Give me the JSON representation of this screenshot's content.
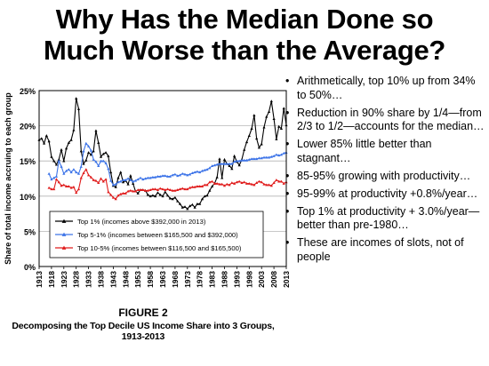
{
  "slide": {
    "title_line1": "Why Has the Median Done so",
    "title_line2": "Much Worse than the Average?"
  },
  "bullets": [
    "Arithmetically, top 10% up from 34% to 50%…",
    "Reduction in 90% share by 1/4—from 2/3 to 1/2—accounts for the median…",
    "Lower 85% little better than stagnant…",
    "85-95% growing with productivity…",
    "95-99% at productivity +0.8%/year…",
    "Top 1% at productivity + 3.0%/year—better than pre-1980…",
    "These are incomes of slots, not of people"
  ],
  "figure": {
    "number": "FIGURE 2",
    "caption": "Decomposing the Top Decile US Income Share into 3 Groups, 1913-2013"
  },
  "chart_data": {
    "type": "line",
    "title": "",
    "xlabel": "",
    "ylabel": "Share of total income accruing to each group",
    "xlim": [
      1913,
      2013
    ],
    "ylim": [
      0,
      25
    ],
    "x_ticks": [
      "1913",
      "1918",
      "1923",
      "1928",
      "1933",
      "1938",
      "1943",
      "1948",
      "1953",
      "1958",
      "1963",
      "1968",
      "1973",
      "1978",
      "1983",
      "1988",
      "1993",
      "1998",
      "2003",
      "2008",
      "2013"
    ],
    "y_ticks": [
      "0%",
      "5%",
      "10%",
      "15%",
      "20%",
      "25%"
    ],
    "y_tick_values": [
      0,
      5,
      10,
      15,
      20,
      25
    ],
    "grid": true,
    "legend_position": "lower-left",
    "series": [
      {
        "name": "Top 1% (incomes above $392,000 in 2013)",
        "color": "#000000",
        "marker": "triangle",
        "x": [
          1913,
          1914,
          1915,
          1916,
          1917,
          1918,
          1919,
          1920,
          1921,
          1922,
          1923,
          1924,
          1925,
          1926,
          1927,
          1928,
          1929,
          1930,
          1931,
          1932,
          1933,
          1934,
          1935,
          1936,
          1937,
          1938,
          1939,
          1940,
          1941,
          1942,
          1943,
          1944,
          1945,
          1946,
          1947,
          1948,
          1949,
          1950,
          1951,
          1952,
          1953,
          1954,
          1955,
          1956,
          1957,
          1958,
          1959,
          1960,
          1961,
          1962,
          1963,
          1964,
          1965,
          1966,
          1967,
          1968,
          1969,
          1970,
          1971,
          1972,
          1973,
          1974,
          1975,
          1976,
          1977,
          1978,
          1979,
          1980,
          1981,
          1982,
          1983,
          1984,
          1985,
          1986,
          1987,
          1988,
          1989,
          1990,
          1991,
          1992,
          1993,
          1994,
          1995,
          1996,
          1997,
          1998,
          1999,
          2000,
          2001,
          2002,
          2003,
          2004,
          2005,
          2006,
          2007,
          2008,
          2009,
          2010,
          2011,
          2012,
          2013
        ],
        "values": [
          18.0,
          18.2,
          17.5,
          18.6,
          17.8,
          15.6,
          15.0,
          14.5,
          15.2,
          16.6,
          15.0,
          16.8,
          17.6,
          18.0,
          19.4,
          23.9,
          22.4,
          16.4,
          14.6,
          15.1,
          16.2,
          15.9,
          16.4,
          19.3,
          17.6,
          15.6,
          16.0,
          16.2,
          15.7,
          13.4,
          11.5,
          11.3,
          12.6,
          13.4,
          12.0,
          12.2,
          11.7,
          12.9,
          11.8,
          10.7,
          10.4,
          10.9,
          10.9,
          10.8,
          10.2,
          10.0,
          10.1,
          10.0,
          10.5,
          10.2,
          10.0,
          10.6,
          10.1,
          9.7,
          9.6,
          9.8,
          9.3,
          8.9,
          8.4,
          8.5,
          8.2,
          8.6,
          8.8,
          8.4,
          8.9,
          8.9,
          9.6,
          10.0,
          10.1,
          10.8,
          11.4,
          11.8,
          12.7,
          15.3,
          12.6,
          15.2,
          14.6,
          14.3,
          13.9,
          15.7,
          14.9,
          14.4,
          15.2,
          16.6,
          17.7,
          18.6,
          19.6,
          21.5,
          18.2,
          16.9,
          17.4,
          19.8,
          21.3,
          22.0,
          23.5,
          21.0,
          18.1,
          19.9,
          19.6,
          22.5,
          20.1
        ]
      },
      {
        "name": "Top 5-1% (incomes between $165,500 and $392,000)",
        "color": "#3d74e8",
        "marker": "triangle",
        "x": [
          1917,
          1918,
          1919,
          1920,
          1921,
          1922,
          1923,
          1924,
          1925,
          1926,
          1927,
          1928,
          1929,
          1930,
          1931,
          1932,
          1933,
          1934,
          1935,
          1936,
          1937,
          1938,
          1939,
          1940,
          1941,
          1942,
          1943,
          1944,
          1945,
          1946,
          1947,
          1948,
          1949,
          1950,
          1951,
          1952,
          1953,
          1954,
          1955,
          1956,
          1957,
          1958,
          1959,
          1960,
          1961,
          1962,
          1963,
          1964,
          1965,
          1966,
          1967,
          1968,
          1969,
          1970,
          1971,
          1972,
          1973,
          1974,
          1975,
          1976,
          1977,
          1978,
          1979,
          1980,
          1981,
          1982,
          1983,
          1984,
          1985,
          1986,
          1987,
          1988,
          1989,
          1990,
          1991,
          1992,
          1993,
          1994,
          1995,
          1996,
          1997,
          1998,
          1999,
          2000,
          2001,
          2002,
          2003,
          2004,
          2005,
          2006,
          2007,
          2008,
          2009,
          2010,
          2011,
          2012,
          2013
        ],
        "values": [
          13.2,
          12.4,
          12.6,
          12.8,
          15.0,
          14.2,
          13.2,
          13.6,
          13.8,
          13.4,
          13.8,
          13.4,
          13.2,
          14.2,
          16.4,
          17.5,
          17.1,
          16.5,
          15.2,
          14.9,
          14.3,
          15.0,
          15.0,
          14.7,
          13.9,
          12.2,
          11.6,
          11.7,
          12.0,
          12.1,
          12.3,
          12.3,
          12.5,
          12.3,
          12.1,
          12.2,
          12.4,
          12.6,
          12.4,
          12.5,
          12.6,
          12.6,
          12.7,
          12.7,
          12.8,
          12.8,
          12.9,
          12.9,
          12.8,
          12.8,
          13.0,
          13.1,
          12.9,
          13.0,
          13.2,
          13.1,
          13.0,
          13.1,
          13.3,
          13.4,
          13.5,
          13.4,
          13.6,
          13.7,
          13.8,
          14.0,
          14.3,
          14.4,
          14.5,
          14.6,
          14.6,
          14.6,
          14.6,
          14.6,
          14.6,
          14.9,
          15.0,
          15.0,
          15.1,
          15.1,
          15.1,
          15.2,
          15.3,
          15.3,
          15.3,
          15.4,
          15.4,
          15.5,
          15.5,
          15.5,
          15.6,
          15.7,
          15.9,
          15.8,
          15.9,
          16.1,
          16.2
        ]
      },
      {
        "name": "Top 10-5% (incomes between $116,500 and $165,500)",
        "color": "#e01c1c",
        "marker": "triangle",
        "x": [
          1917,
          1918,
          1919,
          1920,
          1921,
          1922,
          1923,
          1924,
          1925,
          1926,
          1927,
          1928,
          1929,
          1930,
          1931,
          1932,
          1933,
          1934,
          1935,
          1936,
          1937,
          1938,
          1939,
          1940,
          1941,
          1942,
          1943,
          1944,
          1945,
          1946,
          1947,
          1948,
          1949,
          1950,
          1951,
          1952,
          1953,
          1954,
          1955,
          1956,
          1957,
          1958,
          1959,
          1960,
          1961,
          1962,
          1963,
          1964,
          1965,
          1966,
          1967,
          1968,
          1969,
          1970,
          1971,
          1972,
          1973,
          1974,
          1975,
          1976,
          1977,
          1978,
          1979,
          1980,
          1981,
          1982,
          1983,
          1984,
          1985,
          1986,
          1987,
          1988,
          1989,
          1990,
          1991,
          1992,
          1993,
          1994,
          1995,
          1996,
          1997,
          1998,
          1999,
          2000,
          2001,
          2002,
          2003,
          2004,
          2005,
          2006,
          2007,
          2008,
          2009,
          2010,
          2011,
          2012,
          2013
        ],
        "values": [
          11.2,
          11.0,
          11.0,
          12.4,
          12.0,
          11.5,
          11.6,
          11.4,
          11.4,
          11.2,
          11.3,
          10.5,
          11.0,
          12.6,
          13.3,
          13.8,
          13.0,
          12.7,
          12.3,
          12.2,
          11.9,
          12.5,
          12.1,
          12.4,
          10.6,
          10.2,
          9.8,
          9.6,
          10.1,
          10.3,
          10.4,
          10.4,
          10.7,
          10.8,
          10.7,
          10.7,
          10.9,
          10.9,
          10.9,
          10.8,
          10.8,
          10.9,
          11.0,
          11.0,
          10.9,
          11.1,
          11.0,
          10.9,
          11.0,
          10.9,
          10.8,
          10.8,
          10.9,
          11.0,
          11.1,
          11.0,
          11.0,
          11.2,
          11.3,
          11.3,
          11.4,
          11.4,
          11.4,
          11.6,
          11.6,
          12.0,
          12.1,
          11.8,
          11.8,
          11.7,
          11.7,
          11.5,
          11.7,
          11.6,
          11.9,
          11.8,
          12.0,
          12.1,
          11.9,
          12.0,
          11.8,
          11.8,
          11.7,
          11.6,
          11.9,
          12.1,
          12.0,
          11.7,
          11.6,
          11.6,
          11.5,
          11.9,
          12.3,
          12.1,
          12.1,
          11.8,
          12.0
        ]
      }
    ]
  }
}
